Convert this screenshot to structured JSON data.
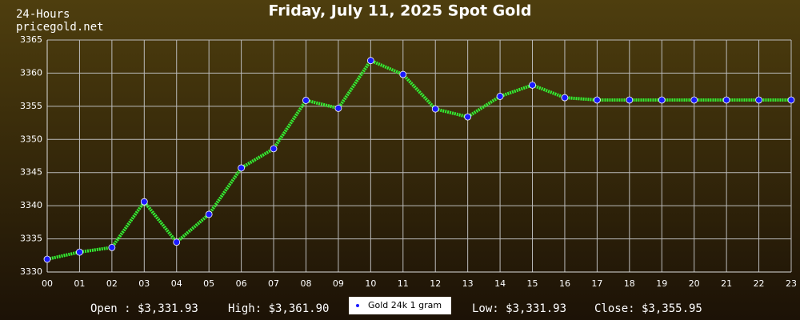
{
  "chart_data": {
    "type": "line",
    "title": "Friday, July 11, 2025 Spot Gold",
    "annotations": [
      "24-Hours",
      "pricegold.net"
    ],
    "stats": [
      "Open : $3,331.93",
      "High: $3,361.90",
      "Low: $3,331.93",
      "Close: $3,355.95"
    ],
    "categories": [
      "00",
      "01",
      "02",
      "03",
      "04",
      "05",
      "06",
      "07",
      "08",
      "09",
      "10",
      "11",
      "12",
      "13",
      "14",
      "15",
      "16",
      "17",
      "18",
      "19",
      "20",
      "21",
      "22",
      "23"
    ],
    "series": [
      {
        "name": "Gold 24k 1 gram",
        "color": "#33ee33",
        "marker_color": "#1a1aff",
        "values": [
          3331.93,
          3333.0,
          3333.7,
          3340.6,
          3334.5,
          3338.7,
          3345.7,
          3348.6,
          3355.9,
          3354.7,
          3361.9,
          3359.8,
          3354.6,
          3353.4,
          3356.5,
          3358.2,
          3356.3,
          3355.95,
          3355.95,
          3355.95,
          3355.95,
          3355.95,
          3355.95,
          3355.95
        ]
      }
    ],
    "ylim": [
      3330,
      3365
    ],
    "yticks": [
      3330,
      3335,
      3340,
      3345,
      3350,
      3355,
      3360,
      3365
    ],
    "grid": true
  }
}
